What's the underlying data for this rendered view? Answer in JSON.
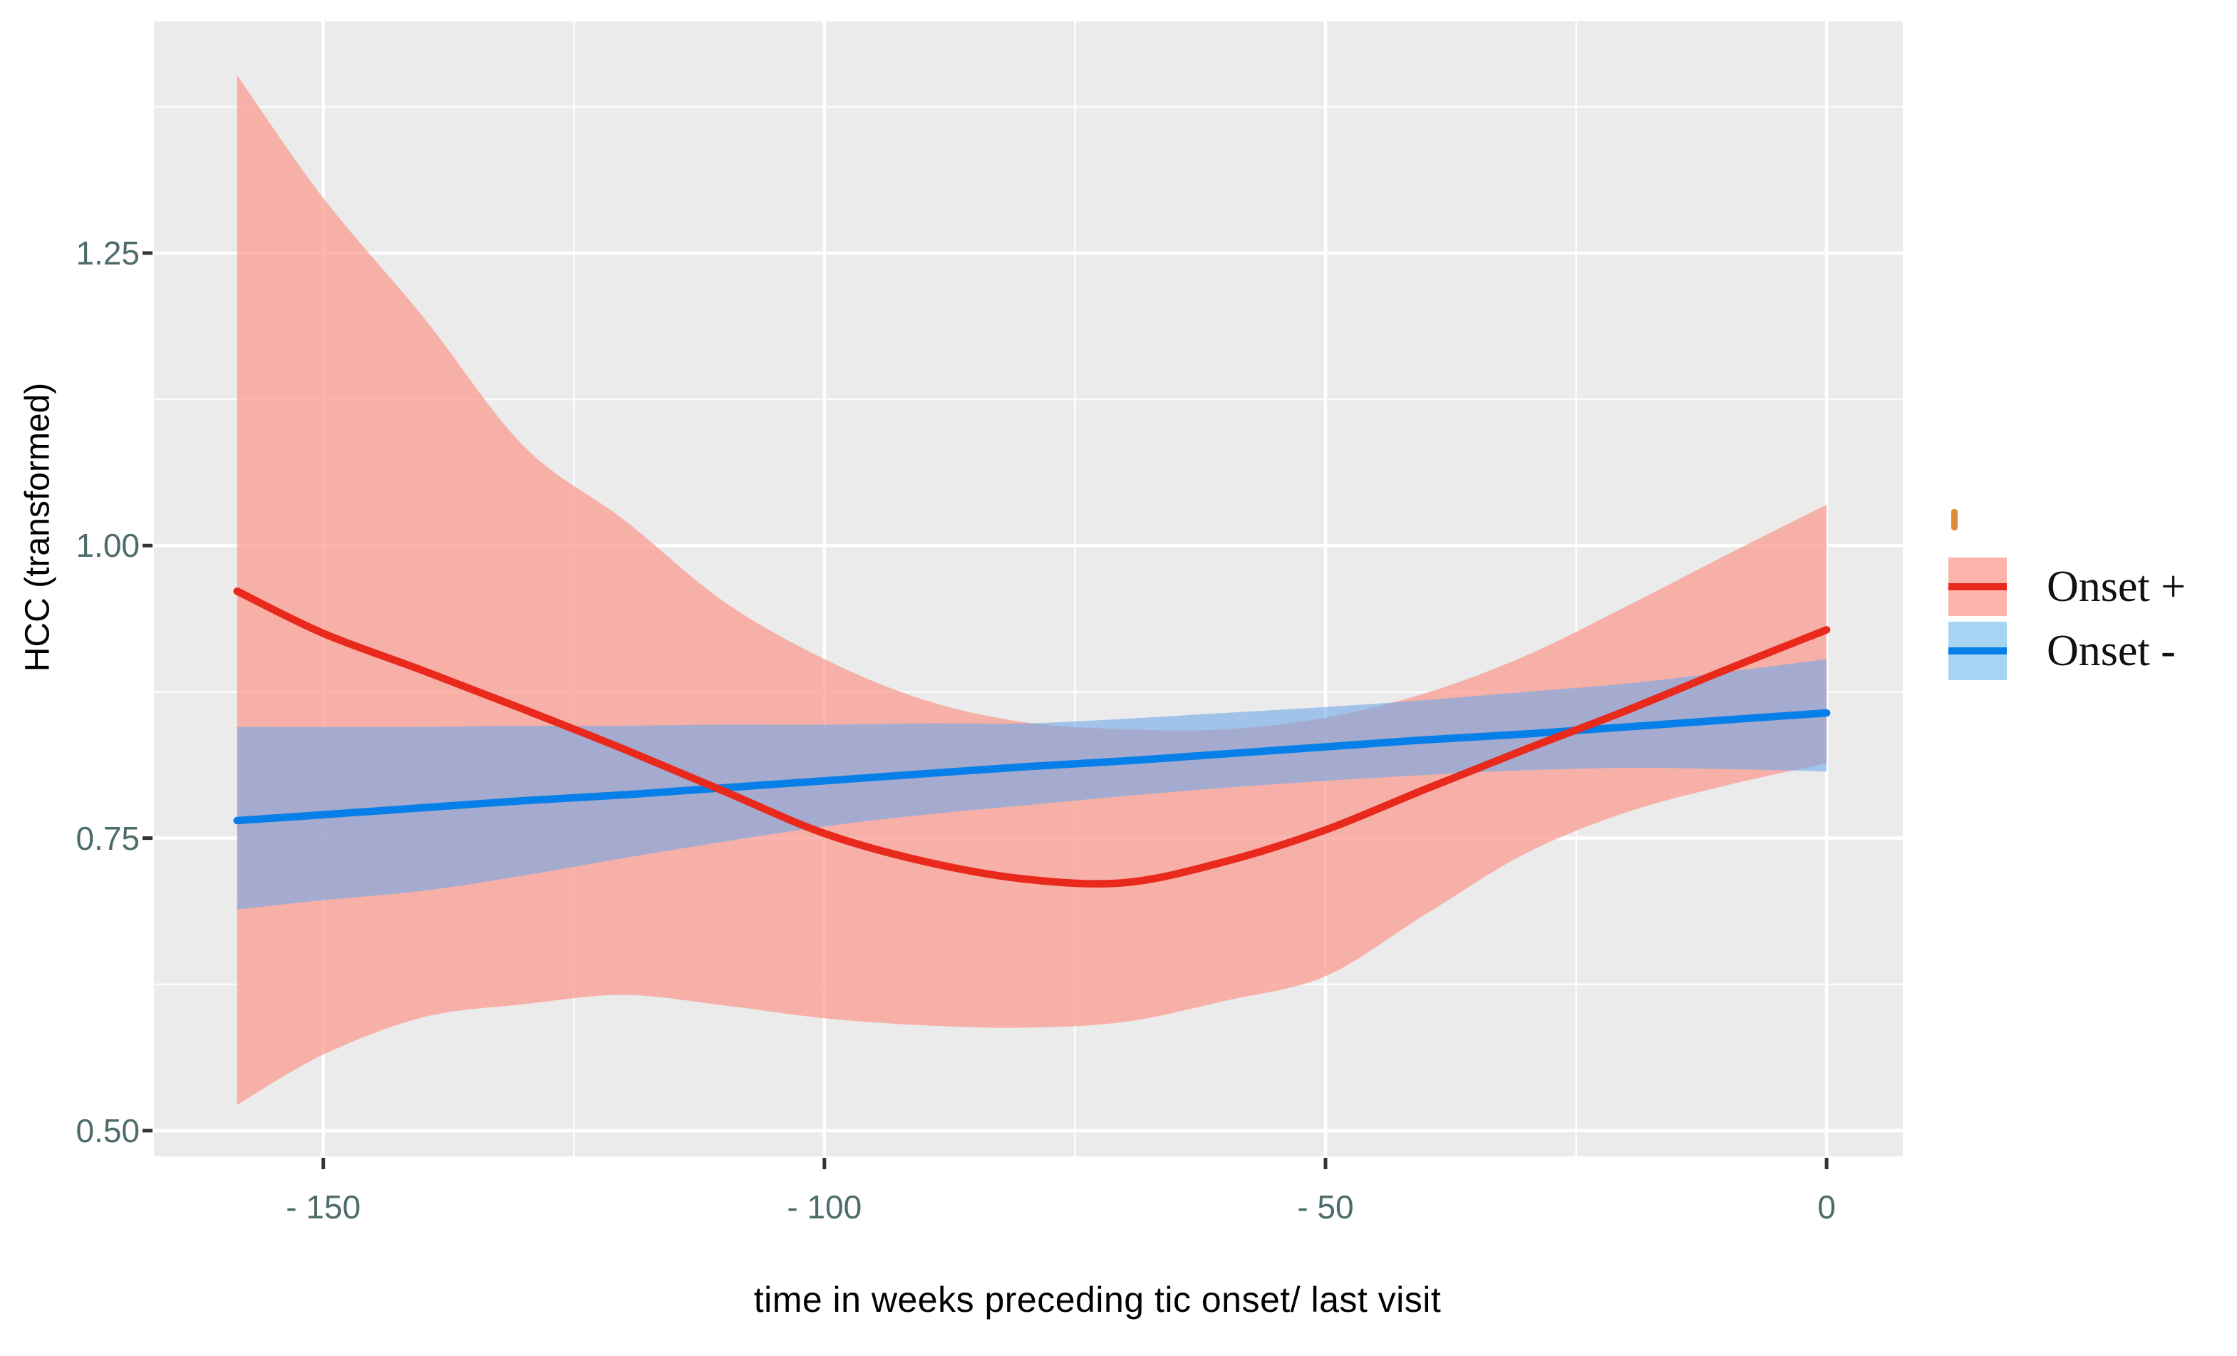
{
  "figure": {
    "background": "#FFFFFF",
    "panel_bg": "#EBEBEB",
    "grid_color": "#FFFFFF",
    "tick_mark_color": "#333333",
    "axis_text_color": "#4E6B6B",
    "axis_title_color": "#000000"
  },
  "legend": {
    "items": [
      {
        "label": "Onset +",
        "line": "#E8291C",
        "fill": "#FBB3AB"
      },
      {
        "label": "Onset -",
        "line": "#0680E8",
        "fill": "#A5D5F2"
      }
    ],
    "artifact_color": "#DE8A33"
  },
  "chart_data": {
    "type": "line",
    "title": "",
    "x_label": "time in weeks preceding tic onset/ last visit",
    "y_label": "HCC (transformed)",
    "x_domain": [
      -166.9,
      7.6
    ],
    "y_domain": [
      0.478,
      1.448
    ],
    "grid": "on",
    "legend_position": "right",
    "x_ticks": [
      {
        "v": -150,
        "label": "- 150"
      },
      {
        "v": -100,
        "label": "- 100"
      },
      {
        "v": -50,
        "label": "- 50"
      },
      {
        "v": 0,
        "label": "0"
      }
    ],
    "x_minor": [
      -125,
      -75,
      -25
    ],
    "y_ticks": [
      {
        "v": 1.25,
        "label": "1.25"
      },
      {
        "v": 1.0,
        "label": "1.00"
      },
      {
        "v": 0.75,
        "label": "0.75"
      },
      {
        "v": 0.5,
        "label": "0.50"
      }
    ],
    "y_minor": [
      1.375,
      1.125,
      0.875,
      0.625
    ],
    "x": [
      -158.6,
      -150,
      -140,
      -130,
      -120,
      -110,
      -100,
      -90,
      -80,
      -70,
      -60,
      -50,
      -40,
      -30,
      -20,
      -10,
      0
    ],
    "series": [
      {
        "name": "Onset +",
        "line_color": "#E8291C",
        "band_color": "rgba(249,156,146,0.75)",
        "y": [
          0.961,
          0.925,
          0.893,
          0.86,
          0.826,
          0.79,
          0.754,
          0.73,
          0.715,
          0.712,
          0.73,
          0.757,
          0.792,
          0.826,
          0.859,
          0.894,
          0.928
        ],
        "hi": [
          1.402,
          1.297,
          1.195,
          1.085,
          1.022,
          0.952,
          0.903,
          0.868,
          0.849,
          0.843,
          0.843,
          0.853,
          0.874,
          0.906,
          0.948,
          0.992,
          1.035
        ],
        "lo": [
          0.522,
          0.565,
          0.597,
          0.608,
          0.616,
          0.607,
          0.596,
          0.59,
          0.588,
          0.593,
          0.611,
          0.632,
          0.685,
          0.737,
          0.772,
          0.795,
          0.814
        ]
      },
      {
        "name": "Onset -",
        "line_color": "#0680E8",
        "band_color": "rgba(111,168,232,0.60)",
        "y": [
          0.765,
          0.77,
          0.776,
          0.782,
          0.787,
          0.793,
          0.799,
          0.805,
          0.811,
          0.816,
          0.822,
          0.828,
          0.834,
          0.839,
          0.845,
          0.851,
          0.857
        ],
        "hi": [
          0.845,
          0.845,
          0.845,
          0.846,
          0.846,
          0.847,
          0.847,
          0.848,
          0.848,
          0.852,
          0.857,
          0.862,
          0.868,
          0.875,
          0.882,
          0.892,
          0.903
        ],
        "lo": [
          0.689,
          0.697,
          0.705,
          0.718,
          0.733,
          0.747,
          0.76,
          0.77,
          0.778,
          0.786,
          0.793,
          0.799,
          0.804,
          0.808,
          0.81,
          0.809,
          0.807
        ]
      }
    ]
  }
}
